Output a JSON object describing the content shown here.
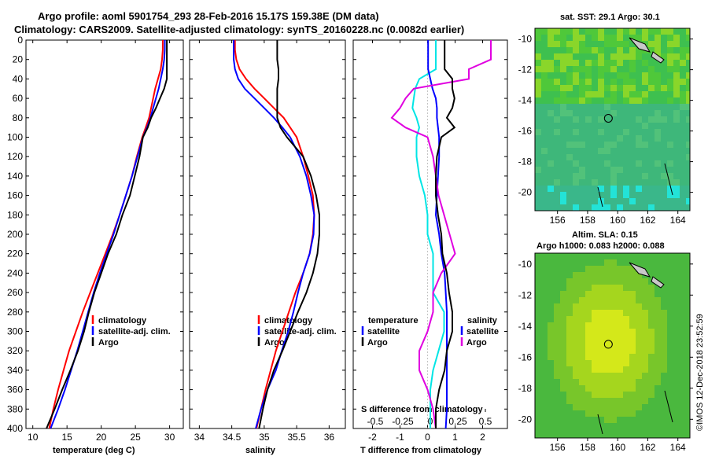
{
  "header": {
    "line1": "Argo profile: aoml 5901754_293 28-Feb-2016 15.17S 159.38E (DM data)",
    "line2": "Climatology: CARS2009. Satellite-adjusted climatology: synTS_20160228.nc (0.0082d earlier)"
  },
  "colors": {
    "climatology": "#ff0000",
    "satellite": "#0000ff",
    "argo": "#000000",
    "t_sat": "#00e5e5",
    "s_sat": "#0000ff",
    "t_argo": "#e000e0",
    "s_argo": "#000000"
  },
  "chart_data": [
    {
      "type": "line",
      "id": "temperature",
      "xlabel": "temperature (deg C)",
      "ylabel": "",
      "xlim": [
        9,
        32
      ],
      "ylim": [
        400,
        0
      ],
      "xticks": [
        "10",
        "15",
        "20",
        "25",
        "30"
      ],
      "xtick_values": [
        10,
        15,
        20,
        25,
        30
      ],
      "yticks": [
        "0",
        "20",
        "40",
        "60",
        "80",
        "100",
        "120",
        "140",
        "160",
        "180",
        "200",
        "220",
        "240",
        "260",
        "280",
        "300",
        "320",
        "340",
        "360",
        "380",
        "400"
      ],
      "depth": [
        0,
        10,
        20,
        30,
        40,
        50,
        60,
        70,
        80,
        90,
        100,
        120,
        140,
        160,
        180,
        200,
        220,
        240,
        260,
        280,
        300,
        320,
        340,
        360,
        380,
        400
      ],
      "legend": [
        "climatology",
        "satellite-adj. clim.",
        "Argo"
      ],
      "series": [
        {
          "name": "climatology",
          "values": [
            29.0,
            29.0,
            28.9,
            28.7,
            28.3,
            27.9,
            27.6,
            27.3,
            27.0,
            26.5,
            26.0,
            25.2,
            24.5,
            23.6,
            22.7,
            21.7,
            20.6,
            19.5,
            18.4,
            17.3,
            16.3,
            15.3,
            14.5,
            13.7,
            13.0,
            12.4
          ]
        },
        {
          "name": "satellite-adj. clim.",
          "values": [
            29.3,
            29.3,
            29.2,
            29.0,
            28.7,
            28.4,
            28.0,
            27.6,
            27.2,
            26.7,
            26.1,
            25.3,
            24.5,
            23.6,
            22.7,
            21.8,
            20.8,
            19.8,
            18.9,
            18.1,
            17.3,
            16.5,
            15.6,
            14.7,
            13.7,
            12.6
          ]
        },
        {
          "name": "Argo",
          "values": [
            29.6,
            29.6,
            29.6,
            29.6,
            29.6,
            29.2,
            28.6,
            28.0,
            27.3,
            26.8,
            26.1,
            25.6,
            24.9,
            24.2,
            23.1,
            22.2,
            21.0,
            20.0,
            19.0,
            18.2,
            17.5,
            16.6,
            15.5,
            14.3,
            13.2,
            12.0
          ]
        }
      ]
    },
    {
      "type": "line",
      "id": "salinity",
      "xlabel": "salinity",
      "ylabel": "",
      "xlim": [
        33.85,
        36.25
      ],
      "ylim": [
        400,
        0
      ],
      "xticks": [
        "34",
        "34.5",
        "35",
        "35.5",
        "36"
      ],
      "xtick_values": [
        34,
        34.5,
        35,
        35.5,
        36
      ],
      "depth": [
        0,
        10,
        20,
        30,
        40,
        50,
        60,
        70,
        80,
        90,
        100,
        120,
        140,
        160,
        180,
        200,
        220,
        240,
        260,
        280,
        300,
        320,
        340,
        360,
        380,
        400
      ],
      "legend": [
        "climatology",
        "satellite-adj. clim.",
        "Argo"
      ],
      "series": [
        {
          "name": "climatology",
          "values": [
            34.55,
            34.55,
            34.57,
            34.62,
            34.72,
            34.85,
            35.0,
            35.15,
            35.3,
            35.4,
            35.5,
            35.6,
            35.68,
            35.75,
            35.77,
            35.75,
            35.7,
            35.6,
            35.48,
            35.38,
            35.28,
            35.18,
            35.1,
            35.02,
            34.95,
            34.88
          ]
        },
        {
          "name": "satellite-adj. clim.",
          "values": [
            34.53,
            34.53,
            34.53,
            34.55,
            34.6,
            34.7,
            34.85,
            35.0,
            35.15,
            35.28,
            35.4,
            35.55,
            35.65,
            35.72,
            35.77,
            35.76,
            35.7,
            35.6,
            35.52,
            35.45,
            35.37,
            35.27,
            35.18,
            35.05,
            34.95,
            34.87
          ]
        },
        {
          "name": "Argo",
          "values": [
            35.2,
            35.2,
            35.2,
            35.22,
            35.22,
            35.2,
            35.2,
            35.2,
            35.2,
            35.25,
            35.35,
            35.6,
            35.72,
            35.8,
            35.85,
            35.85,
            35.82,
            35.75,
            35.65,
            35.52,
            35.4,
            35.28,
            35.15,
            35.05,
            34.98,
            34.92
          ]
        }
      ]
    },
    {
      "type": "line",
      "id": "difference",
      "xlabel": "T difference from climatology",
      "x2label": "S difference from climatology",
      "xlim": [
        -2.7,
        2.9
      ],
      "ylim": [
        400,
        0
      ],
      "xticks": [
        "-2",
        "-1",
        "0",
        "1",
        "2"
      ],
      "xtick_values": [
        -2,
        -1,
        0,
        1,
        2
      ],
      "x2ticks": [
        "-0.5",
        "-0.25",
        "0",
        "0.25",
        "0.5"
      ],
      "x2tick_values": [
        -0.5,
        -0.25,
        0,
        0.25,
        0.5
      ],
      "depth": [
        0,
        10,
        20,
        30,
        40,
        50,
        60,
        70,
        80,
        90,
        100,
        120,
        140,
        160,
        180,
        200,
        220,
        240,
        260,
        280,
        300,
        320,
        340,
        360,
        380,
        400
      ],
      "legend_headers": [
        "temperature",
        "salinity"
      ],
      "legend_left": [
        "satellite",
        "Argo"
      ],
      "legend_right": [
        "satellite",
        "Argo"
      ],
      "series": [
        {
          "name": "T satellite",
          "values": [
            0.3,
            0.3,
            0.3,
            0.3,
            -0.3,
            -0.45,
            -0.5,
            -0.55,
            -0.4,
            -0.3,
            -0.4,
            -0.4,
            -0.3,
            -0.1,
            0.0,
            0.0,
            0.2,
            0.2,
            0.2,
            0.6,
            0.6,
            0.4,
            0.2,
            0.1,
            0.1,
            0.1
          ]
        },
        {
          "name": "S satellite",
          "values": [
            -0.02,
            -0.02,
            -0.02,
            -0.02,
            0.0,
            0.02,
            0.05,
            0.06,
            0.06,
            0.07,
            0.08,
            0.08,
            0.07,
            0.06,
            0.05,
            0.08,
            0.1,
            0.13,
            0.14,
            0.15,
            0.15,
            0.15,
            0.15,
            0.15,
            0.15,
            0.14
          ]
        },
        {
          "name": "T Argo",
          "values": [
            2.3,
            2.3,
            2.3,
            1.5,
            1.5,
            -0.5,
            -0.8,
            -1.0,
            -1.3,
            -0.8,
            0.0,
            0.2,
            0.3,
            0.4,
            0.6,
            0.8,
            1.0,
            0.5,
            0.2,
            0.2,
            0.0,
            -0.3,
            -0.3,
            0.0,
            0.2,
            0.3
          ]
        },
        {
          "name": "S Argo",
          "values": [
            0.13,
            0.13,
            0.13,
            0.13,
            0.2,
            0.2,
            0.22,
            0.2,
            0.15,
            0.22,
            0.1,
            0.06,
            0.05,
            0.05,
            0.07,
            0.1,
            0.11,
            0.15,
            0.17,
            0.2,
            0.2,
            0.15,
            0.13,
            0.08,
            0.05,
            0.05
          ]
        }
      ]
    }
  ],
  "maps": {
    "sst_title": "sat. SST: 29.1 Argo: 30.1",
    "sla_title1": "Altim. SLA: 0.15",
    "sla_title2": "Argo h1000: 0.083 h2000: 0.088",
    "lon_ticks": [
      "156",
      "158",
      "160",
      "162",
      "164"
    ],
    "lat_ticks": [
      "-10",
      "-12",
      "-14",
      "-16",
      "-18",
      "-20"
    ]
  },
  "footer": {
    "stamp": "©IMOS 12-Dec-2018 23:52:59"
  }
}
